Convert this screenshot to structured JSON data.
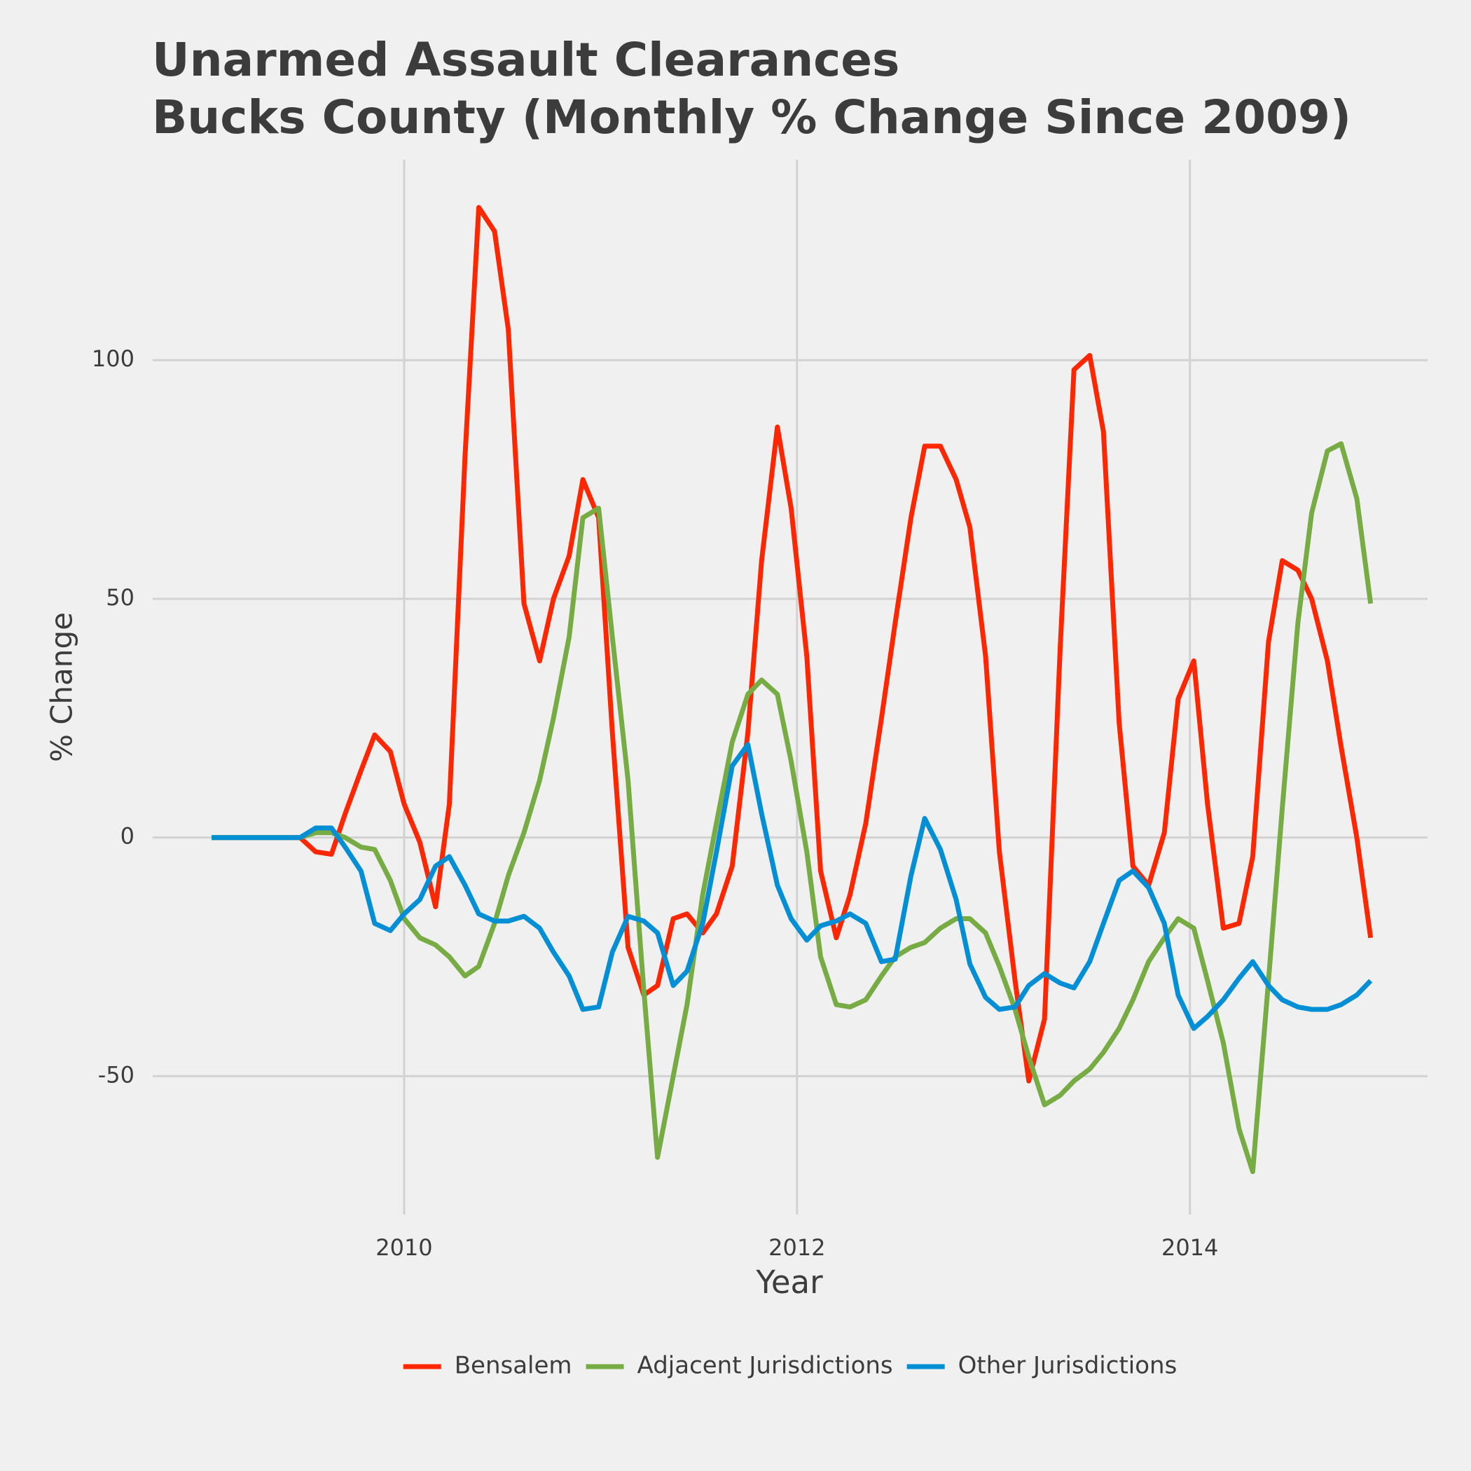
{
  "chart_data": {
    "type": "line",
    "title": [
      "Unarmed Assault Clearances",
      "Bucks County (Monthly % Change Since 2009)"
    ],
    "x_label": "Year",
    "y_label": "% Change",
    "x": [
      2009.02,
      2009.1,
      2009.17,
      2009.25,
      2009.32,
      2009.4,
      2009.47,
      2009.55,
      2009.63,
      2009.7,
      2009.78,
      2009.85,
      2009.93,
      2010.0,
      2010.08,
      2010.16,
      2010.23,
      2010.31,
      2010.38,
      2010.46,
      2010.53,
      2010.61,
      2010.69,
      2010.76,
      2010.84,
      2010.91,
      2010.99,
      2011.06,
      2011.14,
      2011.22,
      2011.29,
      2011.37,
      2011.44,
      2011.52,
      2011.59,
      2011.67,
      2011.75,
      2011.82,
      2011.9,
      2011.97,
      2012.05,
      2012.12,
      2012.2,
      2012.27,
      2012.35,
      2012.43,
      2012.5,
      2012.58,
      2012.65,
      2012.73,
      2012.81,
      2012.88,
      2012.96,
      2013.03,
      2013.11,
      2013.18,
      2013.26,
      2013.34,
      2013.41,
      2013.49,
      2013.56,
      2013.64,
      2013.71,
      2013.79,
      2013.87,
      2013.94,
      2014.02,
      2014.09,
      2014.17,
      2014.25,
      2014.32,
      2014.4,
      2014.47,
      2014.55,
      2014.62,
      2014.7,
      2014.77,
      2014.85,
      2014.92
    ],
    "series": [
      {
        "name": "Bensalem",
        "color": "#ff2700",
        "values": [
          0,
          0,
          0,
          0,
          0,
          0,
          0,
          -3,
          -3.5,
          5,
          14,
          21.5,
          18,
          7,
          -1,
          -14.5,
          7,
          80,
          132,
          127,
          106.5,
          49,
          37,
          50,
          59,
          75,
          67,
          22,
          -23,
          -33,
          -31,
          -17,
          -16,
          -20,
          -16,
          -6,
          22,
          58,
          86,
          69,
          38,
          -7,
          -21,
          -12,
          3,
          25,
          45,
          67,
          82,
          82,
          75,
          65,
          38,
          -3,
          -30,
          -51,
          -38,
          40,
          98,
          101,
          85,
          24,
          -6,
          -10,
          1,
          29,
          37,
          7,
          -19,
          -18,
          -4,
          41,
          58,
          56,
          50,
          37,
          19,
          0,
          -21
        ]
      },
      {
        "name": "Adjacent Jurisdictions",
        "color": "#77ab43",
        "values": [
          0,
          0,
          0,
          0,
          0,
          0,
          0,
          1,
          1,
          0,
          -2,
          -2.5,
          -9,
          -17,
          -21,
          -22.5,
          -25,
          -29,
          -27,
          -18,
          -8,
          1,
          12,
          25,
          42,
          67,
          69,
          42,
          12,
          -32,
          -67,
          -50,
          -35,
          -12,
          3,
          20,
          30,
          33,
          30,
          16,
          -3,
          -25,
          -35,
          -35.5,
          -34,
          -29,
          -25,
          -23,
          -22,
          -19,
          -17,
          -17,
          -20,
          -27,
          -36,
          -46,
          -56,
          -54,
          -51,
          -48.5,
          -45,
          -40,
          -34,
          -26,
          -21,
          -17,
          -19,
          -30,
          -43,
          -61,
          -70,
          -30,
          6,
          45,
          68,
          81,
          82.5,
          71,
          49
        ]
      },
      {
        "name": "Other Jurisdictions",
        "color": "#008fd5",
        "values": [
          0,
          0,
          0,
          0,
          0,
          0,
          0,
          2,
          2,
          -2,
          -7,
          -18,
          -19.5,
          -16,
          -13,
          -6,
          -4,
          -10,
          -16,
          -17.5,
          -17.5,
          -16.5,
          -19,
          -24,
          -29,
          -36,
          -35.5,
          -24,
          -16.5,
          -17.5,
          -20,
          -31,
          -28,
          -18,
          -3,
          15,
          19.5,
          5,
          -10,
          -17,
          -21.5,
          -18.5,
          -17.5,
          -16,
          -18,
          -26,
          -25.5,
          -8,
          4,
          -2.5,
          -13,
          -26.5,
          -33.5,
          -36,
          -35.5,
          -31,
          -28.5,
          -30.5,
          -31.5,
          -26,
          -18,
          -9,
          -7,
          -10.5,
          -18,
          -33,
          -40,
          -37.5,
          -34,
          -29.5,
          -26,
          -31,
          -34,
          -35.5,
          -36,
          -36,
          -35,
          -33,
          -30
        ]
      }
    ],
    "xlim": [
      2008.72,
      2015.21
    ],
    "xticks": [
      2010,
      2012,
      2014
    ],
    "ylim": [
      -79,
      142
    ],
    "yticks": [
      -50,
      0,
      50,
      100
    ],
    "grid": true,
    "legend": "bottom"
  }
}
